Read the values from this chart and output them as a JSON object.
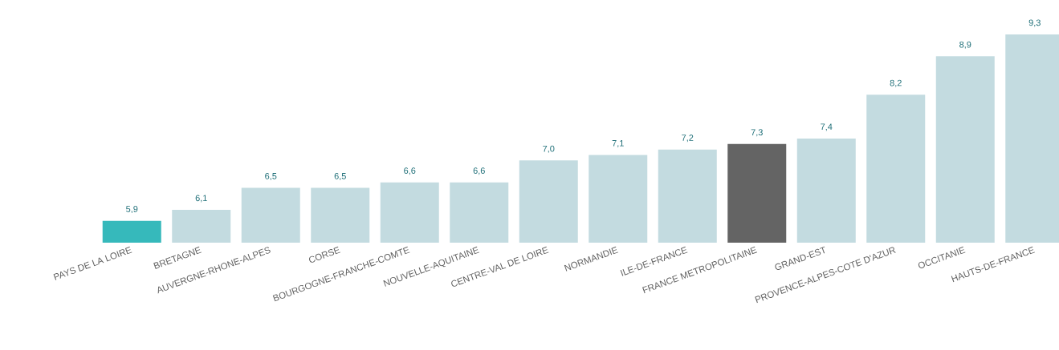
{
  "chart_data": {
    "type": "bar",
    "categories": [
      "PAYS DE LA LOIRE",
      "BRETAGNE",
      "AUVERGNE-RHONE-ALPES",
      "CORSE",
      "BOURGOGNE-FRANCHE-COMTE",
      "NOUVELLE-AQUITAINE",
      "CENTRE-VAL DE LOIRE",
      "NORMANDIE",
      "ILE-DE-FRANCE",
      "FRANCE METROPOLITAINE",
      "GRAND-EST",
      "PROVENCE-ALPES-COTE D'AZUR",
      "OCCITANIE",
      "HAUTS-DE-FRANCE"
    ],
    "values": [
      5.9,
      6.1,
      6.5,
      6.5,
      6.6,
      6.6,
      7.0,
      7.1,
      7.2,
      7.3,
      7.4,
      8.2,
      8.9,
      9.3
    ],
    "value_labels": [
      "5,9",
      "6,1",
      "6,5",
      "6,5",
      "6,6",
      "6,6",
      "7,0",
      "7,1",
      "7,2",
      "7,3",
      "7,4",
      "8,2",
      "8,9",
      "9,3"
    ],
    "colors": [
      "#36b9bb",
      "#c3dbe0",
      "#c3dbe0",
      "#c3dbe0",
      "#c3dbe0",
      "#c3dbe0",
      "#c3dbe0",
      "#c3dbe0",
      "#c3dbe0",
      "#646464",
      "#c3dbe0",
      "#c3dbe0",
      "#c3dbe0",
      "#c3dbe0"
    ],
    "ylim": [
      5.5,
      9.3
    ]
  }
}
